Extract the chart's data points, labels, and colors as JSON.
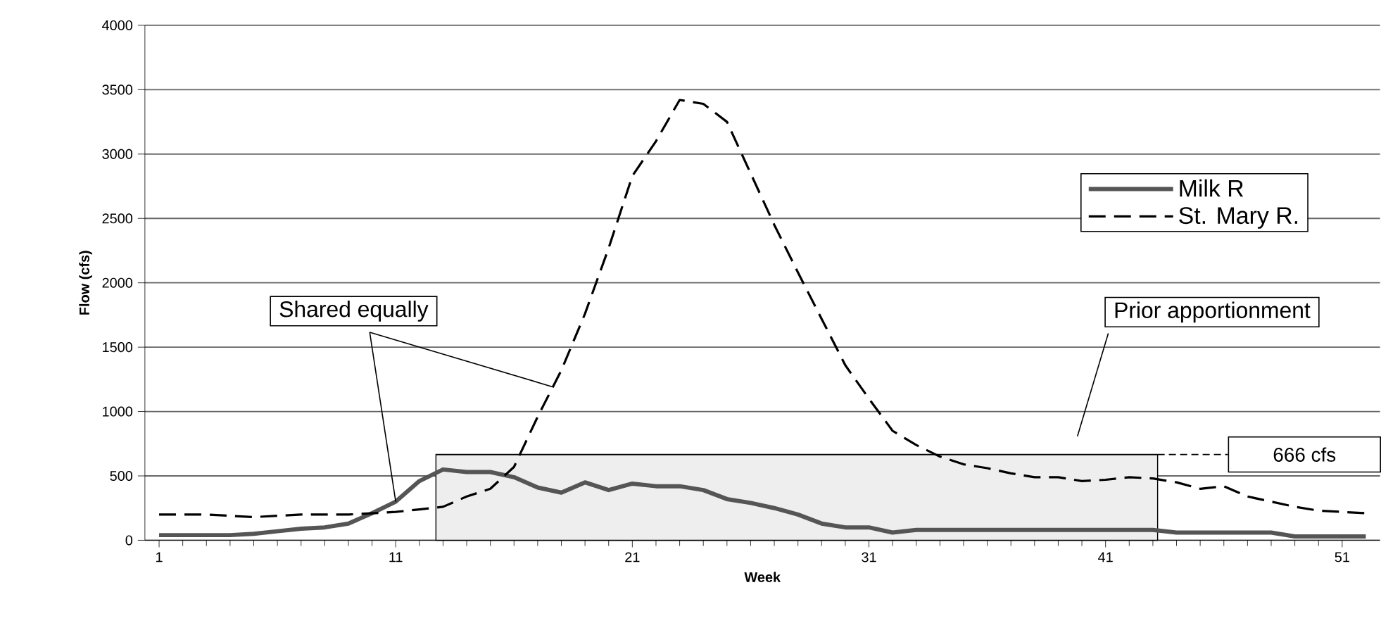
{
  "chart_data": {
    "type": "line",
    "xlabel": "Week",
    "ylabel": "Flow (cfs)",
    "x": [
      1,
      2,
      3,
      4,
      5,
      6,
      7,
      8,
      9,
      10,
      11,
      12,
      13,
      14,
      15,
      16,
      17,
      18,
      19,
      20,
      21,
      22,
      23,
      24,
      25,
      26,
      27,
      28,
      29,
      30,
      31,
      32,
      33,
      34,
      35,
      36,
      37,
      38,
      39,
      40,
      41,
      42,
      43,
      44,
      45,
      46,
      47,
      48,
      49,
      50,
      51,
      52
    ],
    "series": [
      {
        "name": "Milk R",
        "color": "#555555",
        "line_style": "solid",
        "values": [
          40,
          40,
          40,
          40,
          50,
          70,
          90,
          100,
          130,
          210,
          300,
          460,
          550,
          530,
          530,
          490,
          410,
          370,
          450,
          390,
          440,
          420,
          420,
          390,
          320,
          290,
          250,
          200,
          130,
          100,
          100,
          60,
          80,
          80,
          80,
          80,
          80,
          80,
          80,
          80,
          80,
          80,
          80,
          60,
          60,
          60,
          60,
          60,
          30,
          30,
          30,
          30
        ]
      },
      {
        "name": "St. Mary R.",
        "color": "#000000",
        "line_style": "dashed",
        "values": [
          200,
          200,
          200,
          190,
          180,
          190,
          200,
          200,
          200,
          210,
          220,
          240,
          260,
          340,
          400,
          570,
          960,
          1320,
          1760,
          2270,
          2830,
          3100,
          3420,
          3390,
          3250,
          2850,
          2450,
          2080,
          1720,
          1360,
          1100,
          850,
          740,
          650,
          590,
          560,
          520,
          490,
          490,
          460,
          470,
          490,
          480,
          450,
          400,
          420,
          340,
          300,
          260,
          230,
          220,
          210
        ]
      }
    ],
    "xlim": [
      0.4,
      52.6
    ],
    "xticks": [
      1,
      11,
      21,
      31,
      41,
      51
    ],
    "ylim": [
      0,
      4000
    ],
    "yticks": [
      0,
      500,
      1000,
      1500,
      2000,
      2500,
      3000,
      3500,
      4000
    ],
    "grid": "y",
    "legend": "top right",
    "marker": "none",
    "ref_lines": [
      {
        "axis": "y",
        "value": 666,
        "label": "666 cfs",
        "line_style": "dashed",
        "color": "#000000"
      }
    ],
    "bands": [
      {
        "axis": "x",
        "from": 12.7,
        "to": 43.2,
        "color": "#eeeeee"
      }
    ],
    "annotations": [
      {
        "text": "Shared equally",
        "x": 11,
        "y": 300
      },
      "Prior apportionment"
    ]
  }
}
